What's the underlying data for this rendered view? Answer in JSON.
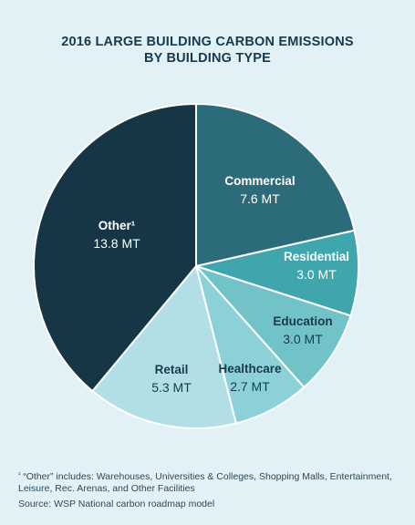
{
  "chart_data": {
    "type": "pie",
    "title_lines": [
      "2016 LARGE BUILDING CARBON EMISSIONS",
      "BY BUILDING TYPE"
    ],
    "unit": "MT",
    "slices": [
      {
        "label": "Commercial",
        "value": 7.6,
        "value_label": "7.6 MT",
        "color": "#2b6b7a",
        "label_color": "#ffffff"
      },
      {
        "label": "Residential",
        "value": 3.0,
        "value_label": "3.0 MT",
        "color": "#3fa6ad",
        "label_color": "#ffffff"
      },
      {
        "label": "Education",
        "value": 3.0,
        "value_label": "3.0 MT",
        "color": "#72c3c8",
        "label_color": "#173a4d"
      },
      {
        "label": "Healthcare",
        "value": 2.7,
        "value_label": "2.7 MT",
        "color": "#8dd1d8",
        "label_color": "#173a4d"
      },
      {
        "label": "Retail",
        "value": 5.3,
        "value_label": "5.3 MT",
        "color": "#b1dfe5",
        "label_color": "#173a4d"
      },
      {
        "label": "Other¹",
        "value": 13.8,
        "value_label": "13.8 MT",
        "color": "#163646",
        "label_color": "#ffffff"
      }
    ],
    "start_angle_deg": 0,
    "direction": "clockwise"
  },
  "footnote": {
    "marker": "¹",
    "text": " “Other” includes: Warehouses, Universities & Colleges, Shopping Malls, Entertainment, Leisure, Rec. Arenas, and Other Facilities"
  },
  "source": "Source: WSP National carbon roadmap model"
}
